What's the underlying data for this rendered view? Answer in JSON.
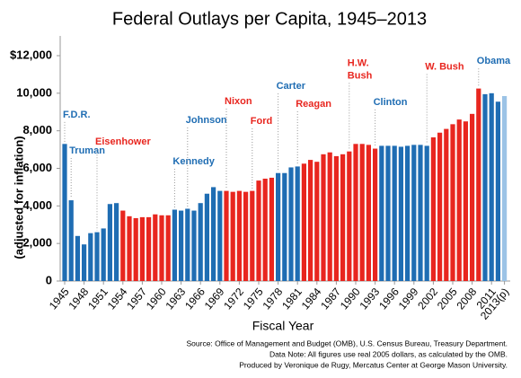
{
  "chart_data": {
    "type": "bar",
    "title": "Federal Outlays per Capita, 1945–2013",
    "x_label": "Fiscal Year",
    "y_label": "(adjusted for inflation)",
    "categories": [
      "1945",
      null,
      null,
      "1948",
      null,
      null,
      "1951",
      null,
      null,
      "1954",
      null,
      null,
      "1957",
      null,
      null,
      "1960",
      null,
      null,
      "1963",
      null,
      null,
      "1966",
      null,
      null,
      "1969",
      null,
      null,
      "1972",
      null,
      null,
      "1975",
      null,
      null,
      "1978",
      null,
      null,
      "1981",
      null,
      null,
      "1984",
      null,
      null,
      "1987",
      null,
      null,
      "1990",
      null,
      null,
      "1993",
      null,
      null,
      "1996",
      null,
      null,
      "1999",
      null,
      null,
      "2002",
      null,
      null,
      "2005",
      null,
      null,
      "2008",
      null,
      null,
      "2011",
      null,
      "2013(p)"
    ],
    "values": [
      7300,
      4300,
      2400,
      1950,
      2550,
      2600,
      2800,
      4100,
      4150,
      3750,
      3450,
      3350,
      3400,
      3400,
      3550,
      3500,
      3500,
      3800,
      3750,
      3850,
      3750,
      4150,
      4650,
      5000,
      4800,
      4800,
      4750,
      4800,
      4750,
      4800,
      5350,
      5450,
      5500,
      5750,
      5750,
      6050,
      6100,
      6250,
      6450,
      6350,
      6750,
      6850,
      6650,
      6750,
      6900,
      7300,
      7300,
      7250,
      7050,
      7200,
      7200,
      7200,
      7150,
      7200,
      7250,
      7250,
      7200,
      7650,
      7900,
      8100,
      8350,
      8600,
      8500,
      8900,
      10250,
      9950,
      10000,
      9550,
      9850
    ],
    "colors": [
      "#1f6db3",
      "#1f6db3",
      "#1f6db3",
      "#1f6db3",
      "#1f6db3",
      "#1f6db3",
      "#1f6db3",
      "#1f6db3",
      "#1f6db3",
      "#e8261f",
      "#e8261f",
      "#e8261f",
      "#e8261f",
      "#e8261f",
      "#e8261f",
      "#e8261f",
      "#e8261f",
      "#1f6db3",
      "#1f6db3",
      "#1f6db3",
      "#1f6db3",
      "#1f6db3",
      "#1f6db3",
      "#1f6db3",
      "#1f6db3",
      "#e8261f",
      "#e8261f",
      "#e8261f",
      "#e8261f",
      "#e8261f",
      "#e8261f",
      "#e8261f",
      "#e8261f",
      "#1f6db3",
      "#1f6db3",
      "#1f6db3",
      "#1f6db3",
      "#e8261f",
      "#e8261f",
      "#e8261f",
      "#e8261f",
      "#e8261f",
      "#e8261f",
      "#e8261f",
      "#e8261f",
      "#e8261f",
      "#e8261f",
      "#e8261f",
      "#e8261f",
      "#1f6db3",
      "#1f6db3",
      "#1f6db3",
      "#1f6db3",
      "#1f6db3",
      "#1f6db3",
      "#1f6db3",
      "#1f6db3",
      "#e8261f",
      "#e8261f",
      "#e8261f",
      "#e8261f",
      "#e8261f",
      "#e8261f",
      "#e8261f",
      "#e8261f",
      "#1f6db3",
      "#1f6db3",
      "#1f6db3",
      "#9cc3e6"
    ],
    "ylim": [
      0,
      12000
    ],
    "yticks": [
      0,
      {
        "value": 2000,
        "label": "2,000"
      },
      {
        "value": 4000,
        "label": "4,000"
      },
      {
        "value": 6000,
        "label": "6,000"
      },
      {
        "value": 8000,
        "label": "8,000"
      },
      {
        "value": 10000,
        "label": "10,000"
      },
      {
        "value": 12000,
        "label": "$12,000"
      }
    ],
    "grid": false,
    "annotations": [
      {
        "lines": [
          "F.D.R."
        ],
        "x": 1945,
        "y": 8850,
        "color": "#1f6db3"
      },
      {
        "lines": [
          "Truman"
        ],
        "x": 1946,
        "y": 6930,
        "color": "#1f6db3"
      },
      {
        "lines": [
          "Eisenhower"
        ],
        "x": 1950,
        "y": 7400,
        "color": "#e8261f"
      },
      {
        "lines": [
          "Kennedy"
        ],
        "x": 1962,
        "y": 6360,
        "color": "#1f6db3"
      },
      {
        "lines": [
          "Johnson"
        ],
        "x": 1964,
        "y": 8560,
        "color": "#1f6db3"
      },
      {
        "lines": [
          "Nixon"
        ],
        "x": 1970,
        "y": 9560,
        "color": "#e8261f"
      },
      {
        "lines": [
          "Ford"
        ],
        "x": 1974,
        "y": 8510,
        "color": "#e8261f"
      },
      {
        "lines": [
          "Carter"
        ],
        "x": 1978,
        "y": 10370,
        "color": "#1f6db3"
      },
      {
        "lines": [
          "Reagan"
        ],
        "x": 1981,
        "y": 9420,
        "color": "#e8261f"
      },
      {
        "lines": [
          "H.W.",
          "Bush"
        ],
        "x": 1989,
        "y": 11600,
        "color": "#e8261f"
      },
      {
        "lines": [
          "Clinton"
        ],
        "x": 1993,
        "y": 9520,
        "color": "#1f6db3"
      },
      {
        "lines": [
          "W. Bush"
        ],
        "x": 2001,
        "y": 11400,
        "color": "#e8261f"
      },
      {
        "lines": [
          "Obama"
        ],
        "x": 2009,
        "y": 11700,
        "color": "#1f6db3"
      }
    ],
    "notes": [
      "Source: Office of Management and Budget (OMB), U.S. Census Bureau, Treasury Department.",
      "Data Note: All figures use real 2005 dollars, as calculated by the OMB.",
      "Produced by Veronique de Rugy, Mercatus Center at George Mason University."
    ]
  }
}
